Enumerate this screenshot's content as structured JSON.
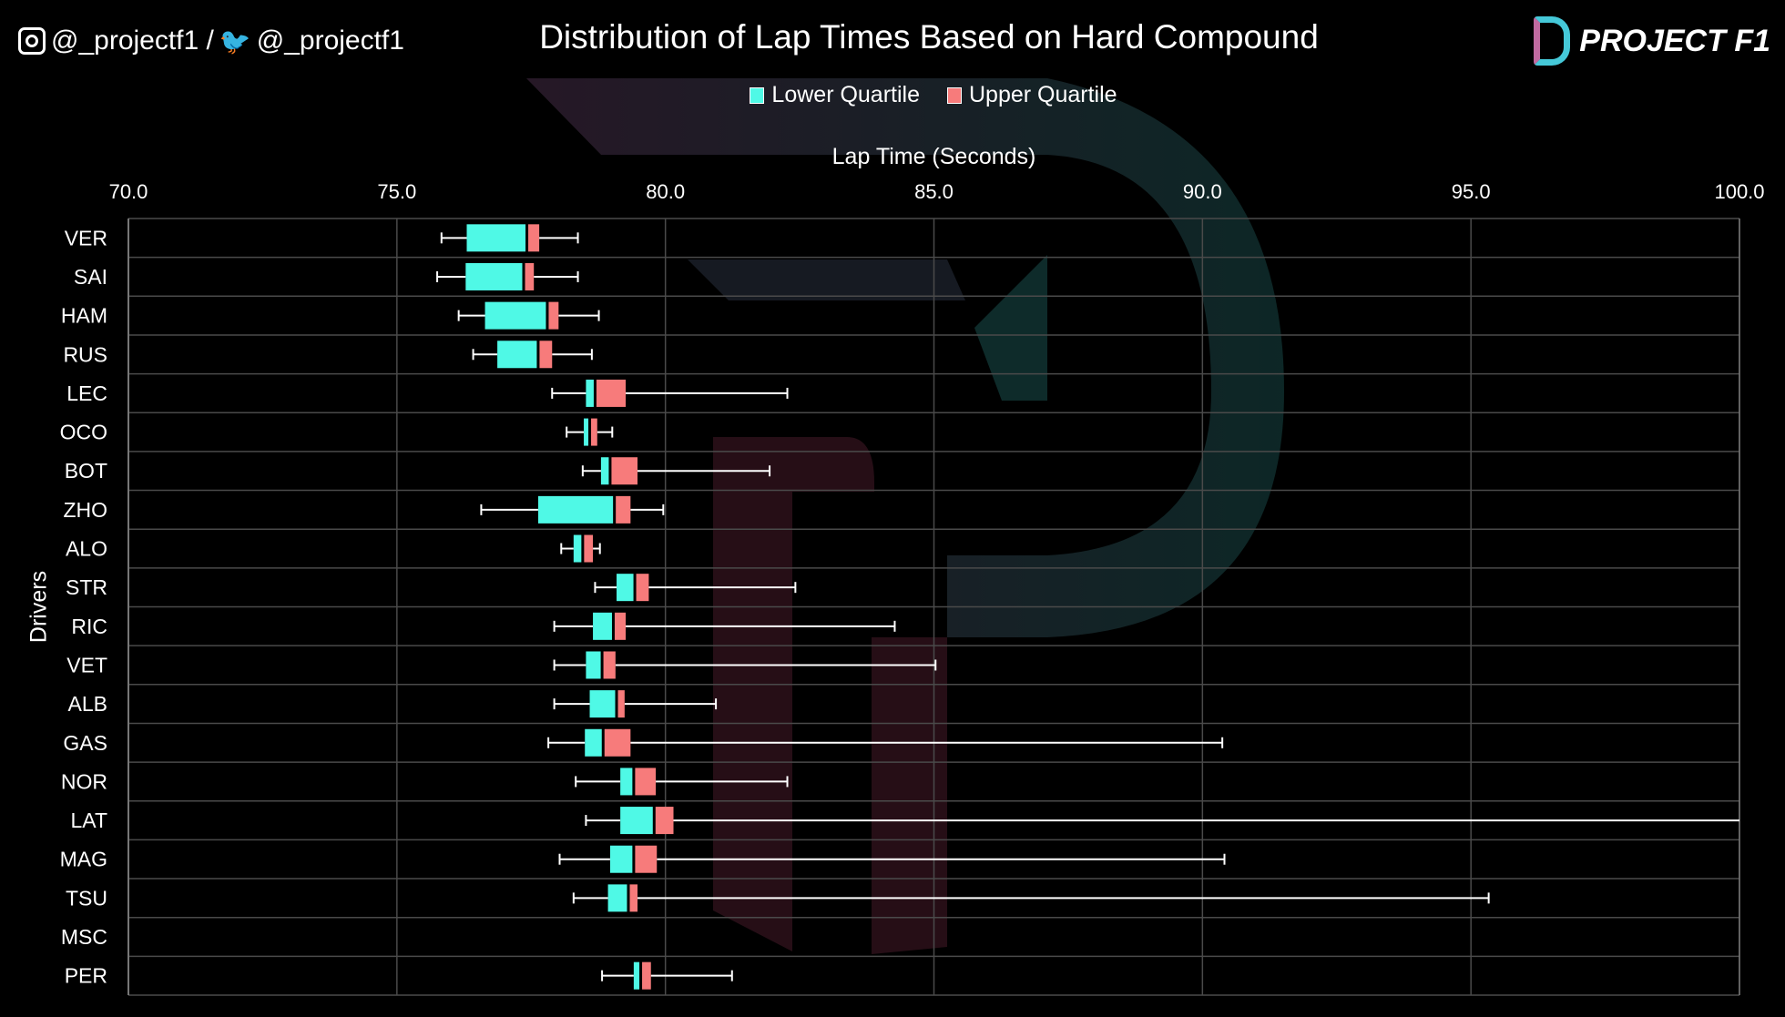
{
  "header": {
    "instagram_handle": "@_projectf1 /",
    "twitter_handle": "@_projectf1",
    "brand": "PROJECT F1"
  },
  "colors": {
    "lower": "#4ff9e6",
    "upper": "#f77b7b",
    "grid": "#4a4a4a"
  },
  "chart_data": {
    "type": "boxplot",
    "title": "Distribution of Lap Times Based on Hard Compound",
    "xlabel": "Lap Time (Seconds)",
    "ylabel": "Drivers",
    "xlim": [
      70,
      100
    ],
    "xticks": [
      "70.0",
      "75.0",
      "80.0",
      "85.0",
      "90.0",
      "95.0",
      "100.0"
    ],
    "grid": true,
    "legend": {
      "placement": "top-center",
      "entries": [
        "Lower Quartile",
        "Upper Quartile"
      ]
    },
    "drivers": [
      {
        "name": "VER",
        "min": 75.83,
        "q1": 76.3,
        "median": 77.42,
        "q3": 77.65,
        "max": 78.37
      },
      {
        "name": "SAI",
        "min": 75.75,
        "q1": 76.28,
        "median": 77.36,
        "q3": 77.55,
        "max": 78.37
      },
      {
        "name": "HAM",
        "min": 76.15,
        "q1": 76.64,
        "median": 77.8,
        "q3": 78.01,
        "max": 78.76
      },
      {
        "name": "RUS",
        "min": 76.42,
        "q1": 76.87,
        "median": 77.63,
        "q3": 77.89,
        "max": 78.63
      },
      {
        "name": "LEC",
        "min": 77.89,
        "q1": 78.52,
        "median": 78.69,
        "q3": 79.26,
        "max": 82.27
      },
      {
        "name": "OCO",
        "min": 78.16,
        "q1": 78.48,
        "median": 78.59,
        "q3": 78.73,
        "max": 79.01
      },
      {
        "name": "BOT",
        "min": 78.46,
        "q1": 78.8,
        "median": 78.97,
        "q3": 79.48,
        "max": 81.94
      },
      {
        "name": "ZHO",
        "min": 76.57,
        "q1": 77.63,
        "median": 79.05,
        "q3": 79.35,
        "max": 79.96
      },
      {
        "name": "ALO",
        "min": 78.06,
        "q1": 78.29,
        "median": 78.46,
        "q3": 78.65,
        "max": 78.78
      },
      {
        "name": "STR",
        "min": 78.69,
        "q1": 79.09,
        "median": 79.43,
        "q3": 79.69,
        "max": 82.42
      },
      {
        "name": "RIC",
        "min": 77.93,
        "q1": 78.65,
        "median": 79.03,
        "q3": 79.26,
        "max": 84.27
      },
      {
        "name": "VET",
        "min": 77.93,
        "q1": 78.52,
        "median": 78.82,
        "q3": 79.07,
        "max": 85.03
      },
      {
        "name": "ALB",
        "min": 77.93,
        "q1": 78.59,
        "median": 79.09,
        "q3": 79.24,
        "max": 80.94
      },
      {
        "name": "GAS",
        "min": 77.82,
        "q1": 78.5,
        "median": 78.84,
        "q3": 79.35,
        "max": 90.37
      },
      {
        "name": "NOR",
        "min": 78.33,
        "q1": 79.16,
        "median": 79.41,
        "q3": 79.82,
        "max": 82.27
      },
      {
        "name": "LAT",
        "min": 78.52,
        "q1": 79.16,
        "median": 79.79,
        "q3": 80.15,
        "max": 100.5
      },
      {
        "name": "MAG",
        "min": 78.03,
        "q1": 78.97,
        "median": 79.41,
        "q3": 79.84,
        "max": 90.41
      },
      {
        "name": "TSU",
        "min": 78.29,
        "q1": 78.93,
        "median": 79.31,
        "q3": 79.48,
        "max": 95.33
      },
      {
        "name": "MSC",
        "min": null,
        "q1": null,
        "median": null,
        "q3": null,
        "max": null
      },
      {
        "name": "PER",
        "min": 78.82,
        "q1": 79.41,
        "median": 79.54,
        "q3": 79.73,
        "max": 81.24
      }
    ]
  }
}
